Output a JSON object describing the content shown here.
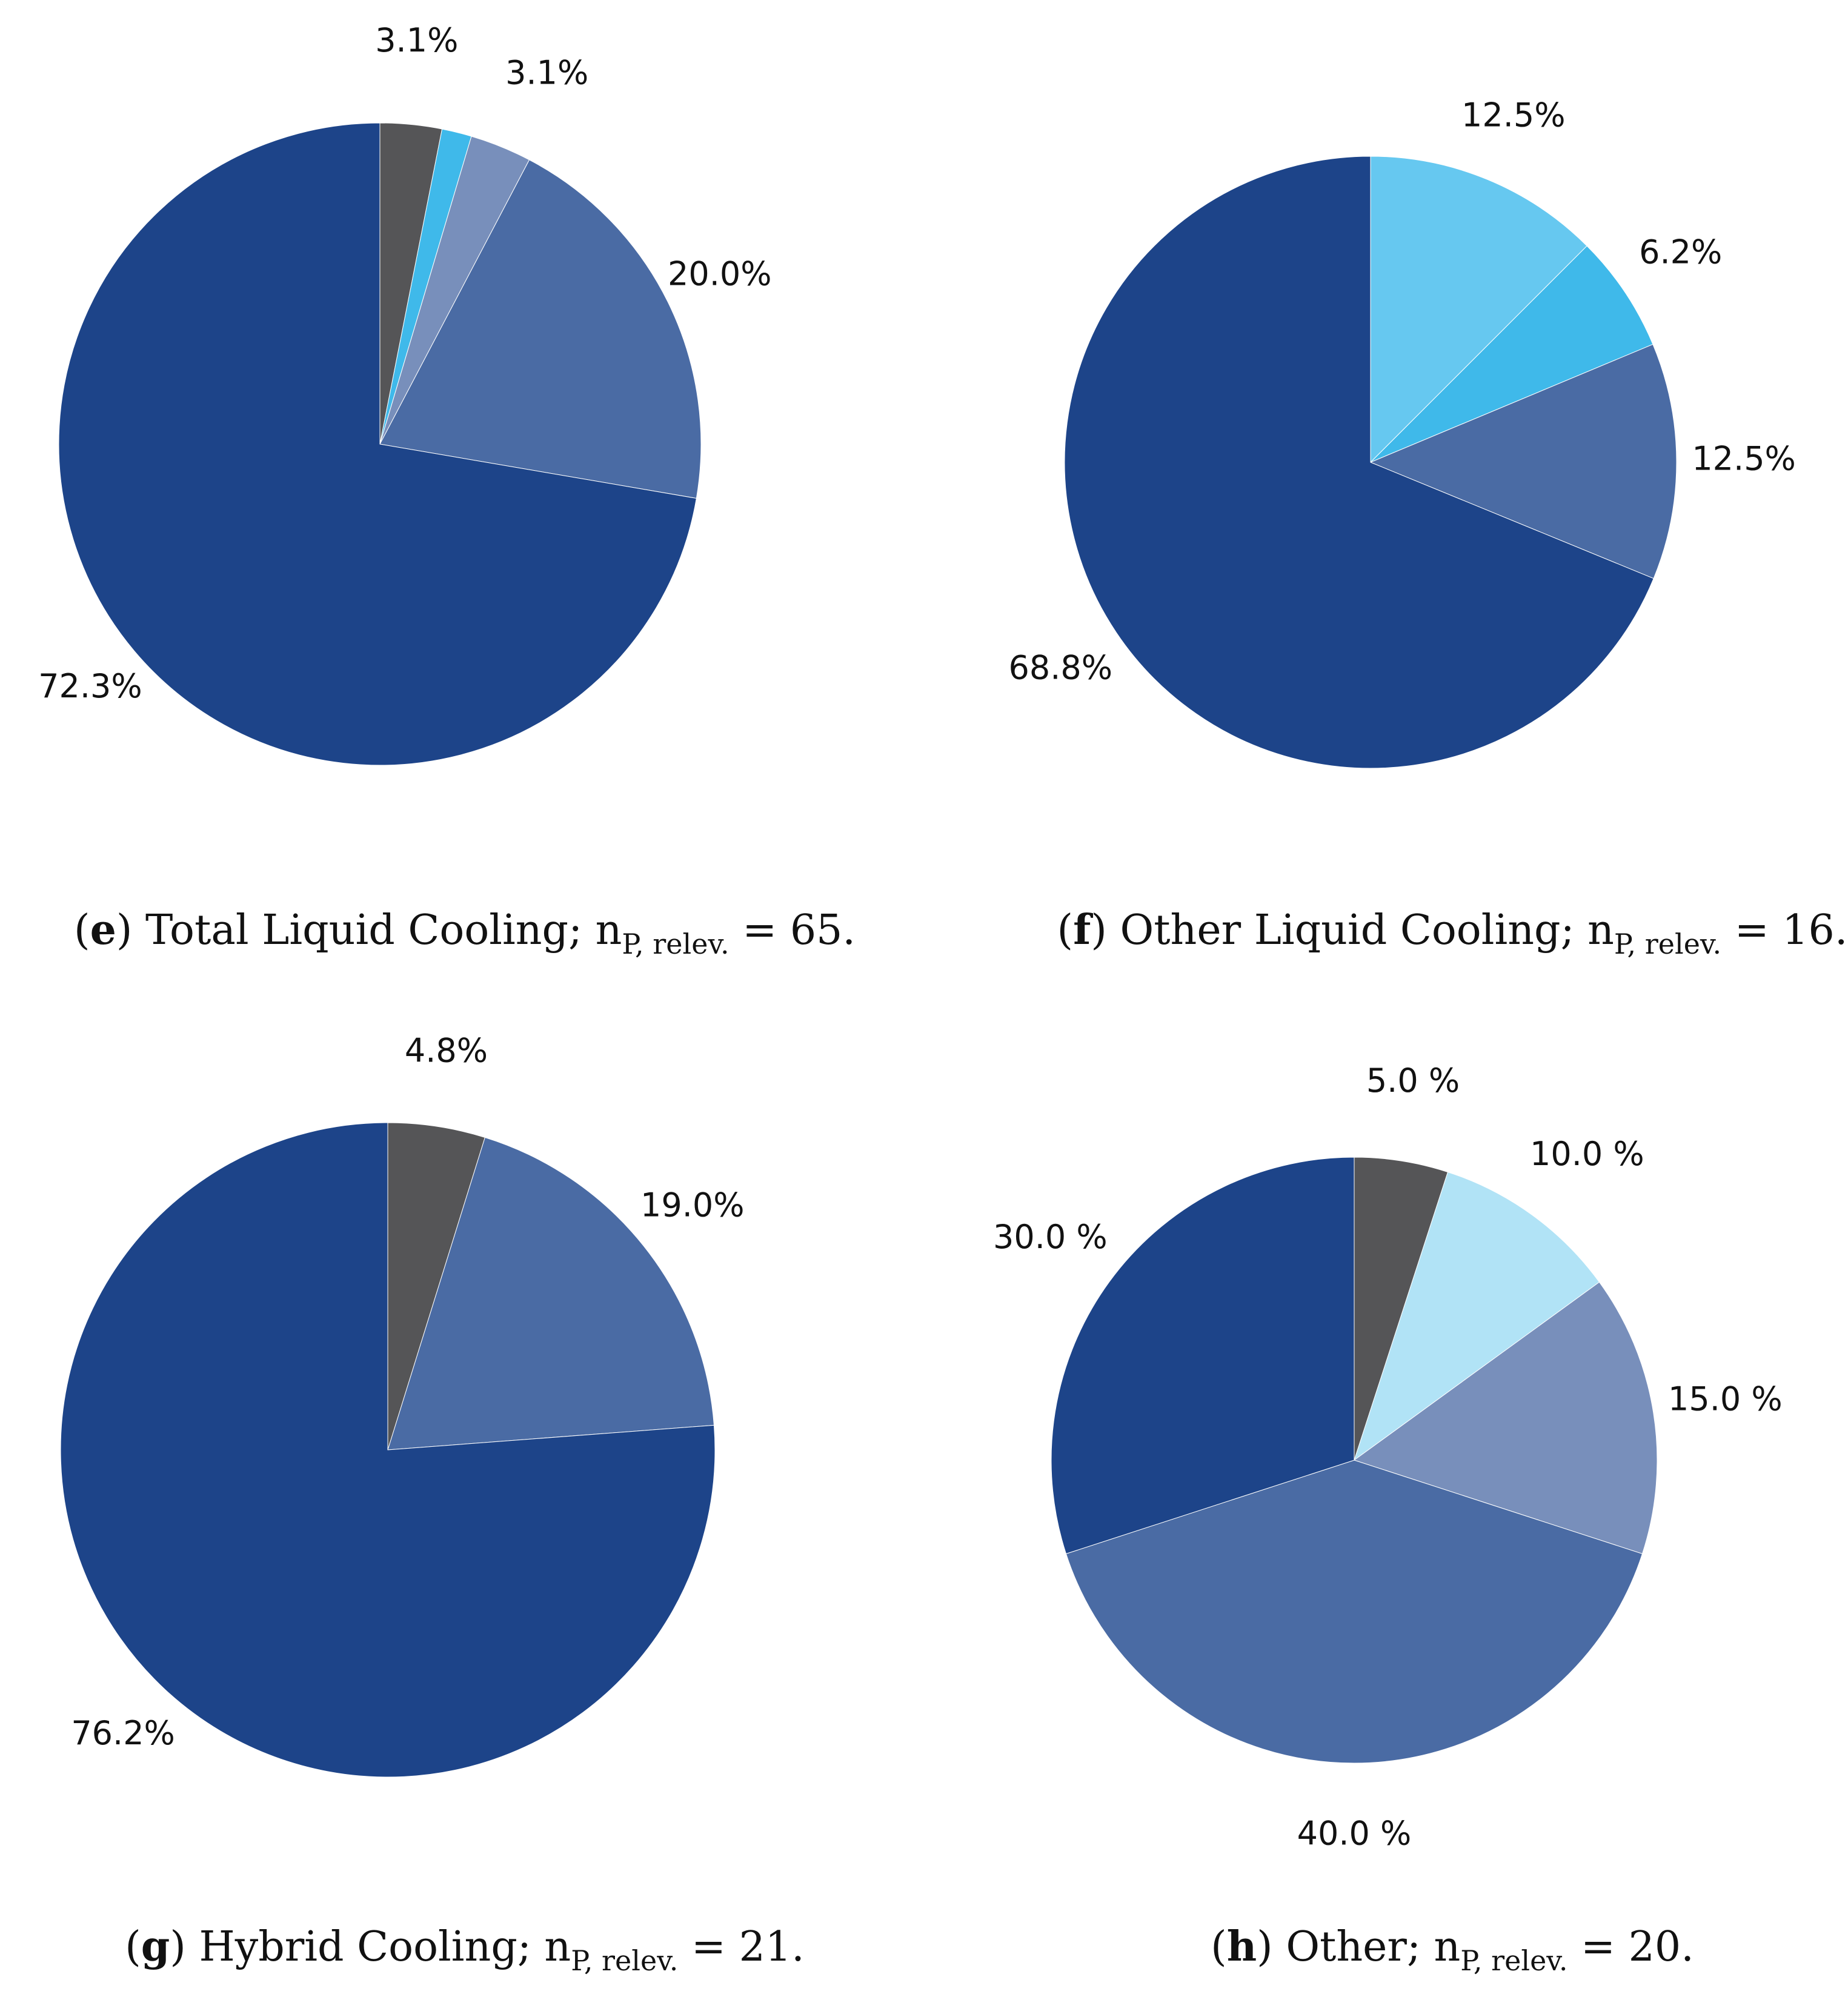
{
  "colors": {
    "navy": "#1d4489",
    "steel": "#4a6ba4",
    "slate_light": "#788fbb",
    "gray": "#555557",
    "sky": "#3fb9ea",
    "sky_light": "#66c8f0",
    "ice": "#b1e3f6",
    "border": "#ffffff"
  },
  "chart_data": [
    {
      "type": "pie",
      "panel": "e",
      "title": "Total Liquid Cooling",
      "n_label": "n",
      "n_sub": "P, relev.",
      "n_value": "65",
      "start_angle_deg": 90,
      "direction": "clockwise",
      "slices": [
        {
          "label": "3.1%",
          "value": 3.1,
          "color": "#555557"
        },
        {
          "label": "",
          "value": 1.5,
          "color": "#3fb9ea"
        },
        {
          "label": "3.1%",
          "value": 3.1,
          "color": "#788fbb"
        },
        {
          "label": "20.0%",
          "value": 20.0,
          "color": "#4a6ba4"
        },
        {
          "label": "72.3%",
          "value": 72.3,
          "color": "#1d4489"
        }
      ]
    },
    {
      "type": "pie",
      "panel": "f",
      "title": "Other Liquid Cooling",
      "n_label": "n",
      "n_sub": "P, relev.",
      "n_value": "16",
      "start_angle_deg": 90,
      "direction": "clockwise",
      "slices": [
        {
          "label": "12.5%",
          "value": 12.5,
          "color": "#66c8f0"
        },
        {
          "label": "6.2%",
          "value": 6.2,
          "color": "#3fb9ea"
        },
        {
          "label": "12.5%",
          "value": 12.5,
          "color": "#4a6ba4"
        },
        {
          "label": "68.8%",
          "value": 68.8,
          "color": "#1d4489"
        }
      ]
    },
    {
      "type": "pie",
      "panel": "g",
      "title": "Hybrid Cooling",
      "n_label": "n",
      "n_sub": "P, relev.",
      "n_value": "21",
      "start_angle_deg": 90,
      "direction": "clockwise",
      "slices": [
        {
          "label": "4.8%",
          "value": 4.8,
          "color": "#555557"
        },
        {
          "label": "19.0%",
          "value": 19.0,
          "color": "#4a6ba4"
        },
        {
          "label": "76.2%",
          "value": 76.2,
          "color": "#1d4489"
        }
      ]
    },
    {
      "type": "pie",
      "panel": "h",
      "title": "Other",
      "n_label": "n",
      "n_sub": "P, relev.",
      "n_value": "20",
      "start_angle_deg": 90,
      "direction": "clockwise",
      "slices": [
        {
          "label": "5.0 %",
          "value": 5.0,
          "color": "#555557"
        },
        {
          "label": "10.0 %",
          "value": 10.0,
          "color": "#b1e3f6"
        },
        {
          "label": "15.0 %",
          "value": 15.0,
          "color": "#788fbb"
        },
        {
          "label": "40.0 %",
          "value": 40.0,
          "color": "#4a6ba4"
        },
        {
          "label": "30.0 %",
          "value": 30.0,
          "color": "#1d4489"
        }
      ]
    }
  ]
}
